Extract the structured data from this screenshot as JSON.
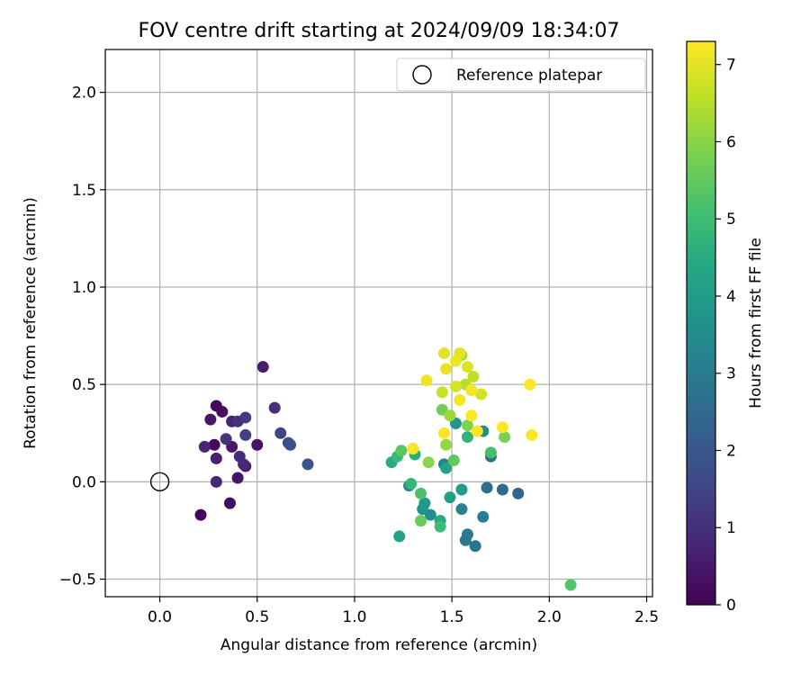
{
  "chart_data": {
    "type": "scatter",
    "title": "FOV centre drift starting at 2024/09/09 18:34:07",
    "xlabel": "Angular distance from reference (arcmin)",
    "ylabel": "Rotation from reference (arcmin)",
    "xlim": [
      -0.28,
      2.53
    ],
    "ylim": [
      -0.59,
      2.22
    ],
    "xticks": [
      0.0,
      0.5,
      1.0,
      1.5,
      2.0,
      2.5
    ],
    "yticks": [
      -0.5,
      0.0,
      0.5,
      1.0,
      1.5,
      2.0
    ],
    "xtick_labels": [
      "0.0",
      "0.5",
      "1.0",
      "1.5",
      "2.0",
      "2.5"
    ],
    "ytick_labels": [
      "−0.5",
      "0.0",
      "0.5",
      "1.0",
      "1.5",
      "2.0"
    ],
    "grid": true,
    "legend": {
      "position": "top-right",
      "entries": [
        "Reference platepar"
      ]
    },
    "reference_point": {
      "x": 0.0,
      "y": 0.0
    },
    "colorbar": {
      "label": "Hours from first FF file",
      "min": 0,
      "max": 7.3,
      "ticks": [
        0,
        1,
        2,
        3,
        4,
        5,
        6,
        7
      ],
      "tick_labels": [
        "0",
        "1",
        "2",
        "3",
        "4",
        "5",
        "6",
        "7"
      ],
      "colormap": "viridis"
    },
    "points": [
      {
        "x": 0.21,
        "y": -0.17,
        "c": 0.1
      },
      {
        "x": 0.29,
        "y": 0.39,
        "c": 0.15
      },
      {
        "x": 0.28,
        "y": 0.19,
        "c": 0.2
      },
      {
        "x": 0.36,
        "y": -0.11,
        "c": 0.25
      },
      {
        "x": 0.32,
        "y": 0.36,
        "c": 0.3
      },
      {
        "x": 0.5,
        "y": 0.19,
        "c": 0.35
      },
      {
        "x": 0.4,
        "y": 0.02,
        "c": 0.4
      },
      {
        "x": 0.26,
        "y": 0.32,
        "c": 0.45
      },
      {
        "x": 0.37,
        "y": 0.18,
        "c": 0.5
      },
      {
        "x": 0.44,
        "y": 0.08,
        "c": 0.55
      },
      {
        "x": 0.53,
        "y": 0.59,
        "c": 0.6
      },
      {
        "x": 0.29,
        "y": 0.12,
        "c": 0.65
      },
      {
        "x": 0.37,
        "y": 0.31,
        "c": 0.7
      },
      {
        "x": 0.23,
        "y": 0.18,
        "c": 0.75
      },
      {
        "x": 0.29,
        "y": 0.0,
        "c": 0.8
      },
      {
        "x": 0.43,
        "y": 0.09,
        "c": 0.85
      },
      {
        "x": 0.41,
        "y": 0.13,
        "c": 0.9
      },
      {
        "x": 0.59,
        "y": 0.38,
        "c": 0.95
      },
      {
        "x": 0.4,
        "y": 0.31,
        "c": 1.05
      },
      {
        "x": 0.34,
        "y": 0.22,
        "c": 1.1
      },
      {
        "x": 0.44,
        "y": 0.33,
        "c": 1.2
      },
      {
        "x": 0.44,
        "y": 0.24,
        "c": 1.3
      },
      {
        "x": 0.62,
        "y": 0.25,
        "c": 1.5
      },
      {
        "x": 0.66,
        "y": 0.2,
        "c": 1.7
      },
      {
        "x": 0.67,
        "y": 0.19,
        "c": 1.8
      },
      {
        "x": 0.76,
        "y": 0.09,
        "c": 2.0
      },
      {
        "x": 1.84,
        "y": -0.06,
        "c": 2.4
      },
      {
        "x": 1.76,
        "y": -0.04,
        "c": 2.5
      },
      {
        "x": 1.68,
        "y": -0.03,
        "c": 2.6
      },
      {
        "x": 1.7,
        "y": 0.13,
        "c": 2.7
      },
      {
        "x": 1.62,
        "y": -0.33,
        "c": 2.8
      },
      {
        "x": 1.57,
        "y": -0.3,
        "c": 2.9
      },
      {
        "x": 1.58,
        "y": -0.27,
        "c": 3.0
      },
      {
        "x": 1.66,
        "y": -0.18,
        "c": 3.1
      },
      {
        "x": 1.55,
        "y": -0.14,
        "c": 3.2
      },
      {
        "x": 1.46,
        "y": 0.09,
        "c": 3.3
      },
      {
        "x": 1.28,
        "y": -0.02,
        "c": 3.4
      },
      {
        "x": 1.66,
        "y": 0.26,
        "c": 3.5
      },
      {
        "x": 1.39,
        "y": -0.17,
        "c": 3.6
      },
      {
        "x": 1.35,
        "y": -0.14,
        "c": 3.7
      },
      {
        "x": 1.52,
        "y": 0.3,
        "c": 3.8
      },
      {
        "x": 1.36,
        "y": -0.11,
        "c": 3.9
      },
      {
        "x": 1.55,
        "y": -0.04,
        "c": 4.0
      },
      {
        "x": 1.49,
        "y": -0.08,
        "c": 4.1
      },
      {
        "x": 1.23,
        "y": -0.28,
        "c": 4.2
      },
      {
        "x": 1.47,
        "y": 0.07,
        "c": 4.3
      },
      {
        "x": 1.44,
        "y": -0.2,
        "c": 4.4
      },
      {
        "x": 1.19,
        "y": 0.1,
        "c": 4.5
      },
      {
        "x": 1.31,
        "y": 0.14,
        "c": 4.6
      },
      {
        "x": 1.58,
        "y": 0.23,
        "c": 4.7
      },
      {
        "x": 1.29,
        "y": -0.01,
        "c": 4.8
      },
      {
        "x": 1.22,
        "y": 0.13,
        "c": 4.9
      },
      {
        "x": 1.44,
        "y": -0.23,
        "c": 5.0
      },
      {
        "x": 1.7,
        "y": 0.15,
        "c": 5.1
      },
      {
        "x": 1.34,
        "y": -0.06,
        "c": 5.2
      },
      {
        "x": 2.11,
        "y": -0.53,
        "c": 5.3
      },
      {
        "x": 1.24,
        "y": 0.16,
        "c": 5.4
      },
      {
        "x": 1.51,
        "y": 0.11,
        "c": 5.5
      },
      {
        "x": 1.34,
        "y": -0.2,
        "c": 5.6
      },
      {
        "x": 1.45,
        "y": 0.37,
        "c": 5.7
      },
      {
        "x": 1.77,
        "y": 0.23,
        "c": 5.8
      },
      {
        "x": 1.58,
        "y": 0.29,
        "c": 5.9
      },
      {
        "x": 1.38,
        "y": 0.1,
        "c": 6.0
      },
      {
        "x": 1.47,
        "y": 0.19,
        "c": 6.1
      },
      {
        "x": 1.49,
        "y": 0.34,
        "c": 6.2
      },
      {
        "x": 1.3,
        "y": 0.17,
        "c": 6.3
      },
      {
        "x": 1.55,
        "y": 0.65,
        "c": 6.4
      },
      {
        "x": 1.57,
        "y": 0.5,
        "c": 6.5
      },
      {
        "x": 1.61,
        "y": 0.54,
        "c": 6.6
      },
      {
        "x": 1.45,
        "y": 0.46,
        "c": 6.7
      },
      {
        "x": 1.65,
        "y": 0.45,
        "c": 6.8
      },
      {
        "x": 1.52,
        "y": 0.49,
        "c": 6.85
      },
      {
        "x": 1.58,
        "y": 0.59,
        "c": 6.9
      },
      {
        "x": 1.46,
        "y": 0.66,
        "c": 6.95
      },
      {
        "x": 1.54,
        "y": 0.66,
        "c": 7.0
      },
      {
        "x": 1.47,
        "y": 0.58,
        "c": 7.05
      },
      {
        "x": 1.52,
        "y": 0.62,
        "c": 7.1
      },
      {
        "x": 1.37,
        "y": 0.52,
        "c": 7.15
      },
      {
        "x": 1.54,
        "y": 0.42,
        "c": 7.2
      },
      {
        "x": 1.6,
        "y": 0.47,
        "c": 7.2
      },
      {
        "x": 1.63,
        "y": 0.26,
        "c": 7.25
      },
      {
        "x": 1.46,
        "y": 0.25,
        "c": 7.25
      },
      {
        "x": 1.6,
        "y": 0.34,
        "c": 7.28
      },
      {
        "x": 1.76,
        "y": 0.28,
        "c": 7.28
      },
      {
        "x": 1.9,
        "y": 0.5,
        "c": 7.3
      },
      {
        "x": 1.91,
        "y": 0.24,
        "c": 7.3
      },
      {
        "x": 1.3,
        "y": 0.17,
        "c": 7.3
      }
    ]
  }
}
